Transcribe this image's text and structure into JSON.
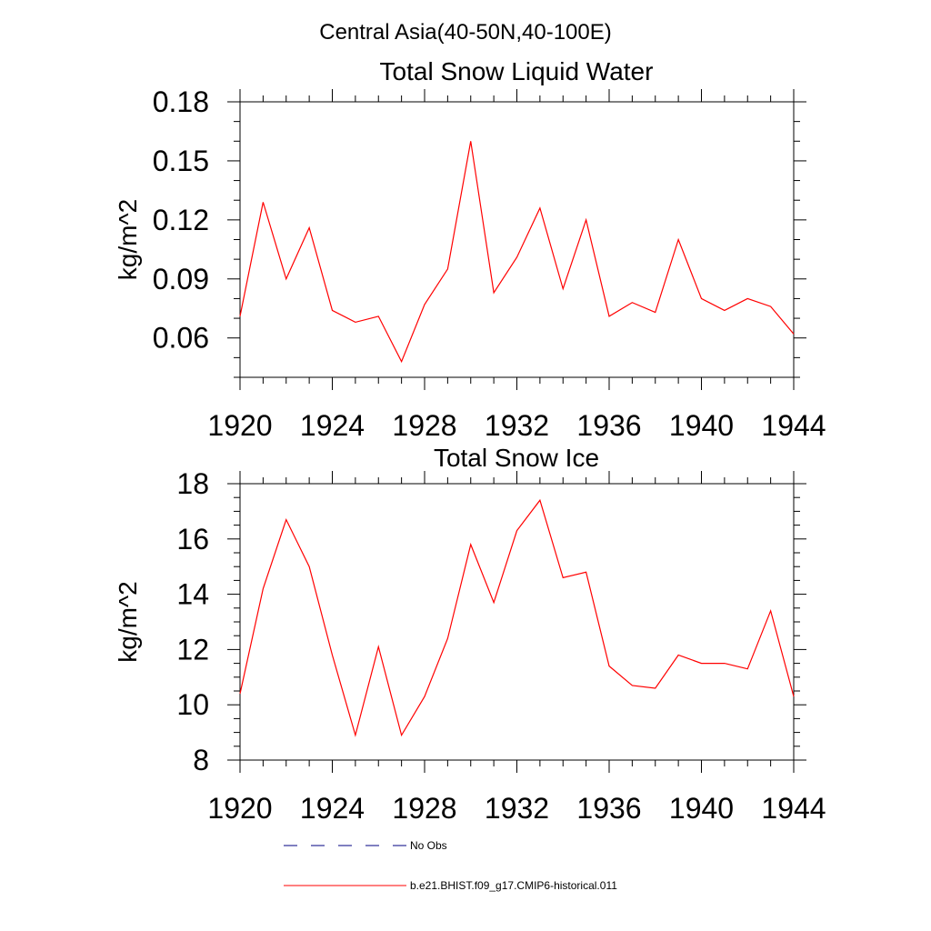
{
  "figure_title": "Central Asia(40-50N,40-100E)",
  "colors": {
    "model": "#ff0000",
    "obs": "#000080",
    "axis": "#000000"
  },
  "legend": {
    "entries": [
      {
        "label": "No Obs",
        "style": "dashed",
        "color": "#000080"
      },
      {
        "label": "b.e21.BHIST.f09_g17.CMIP6-historical.011",
        "style": "solid",
        "color": "#ff0000"
      }
    ]
  },
  "chart_data": [
    {
      "type": "line",
      "title": "Total Snow Liquid Water",
      "xlabel": "",
      "ylabel": "kg/m^2",
      "xlim": [
        1920,
        1944
      ],
      "ylim": [
        0.04,
        0.18
      ],
      "xticks": [
        1920,
        1924,
        1928,
        1932,
        1936,
        1940,
        1944
      ],
      "yticks": [
        0.06,
        0.09,
        0.12,
        0.15,
        0.18
      ],
      "ytick_labels": [
        "0.06",
        "0.09",
        "0.12",
        "0.15",
        "0.18"
      ],
      "grid": false,
      "x": [
        1920,
        1921,
        1922,
        1923,
        1924,
        1925,
        1926,
        1927,
        1928,
        1929,
        1930,
        1931,
        1932,
        1933,
        1934,
        1935,
        1936,
        1937,
        1938,
        1939,
        1940,
        1941,
        1942,
        1943,
        1944
      ],
      "series": [
        {
          "name": "b.e21.BHIST.f09_g17.CMIP6-historical.011",
          "color": "#ff0000",
          "values": [
            0.071,
            0.129,
            0.09,
            0.116,
            0.074,
            0.068,
            0.071,
            0.048,
            0.077,
            0.095,
            0.16,
            0.083,
            0.101,
            0.126,
            0.085,
            0.12,
            0.071,
            0.078,
            0.073,
            0.11,
            0.08,
            0.074,
            0.08,
            0.076,
            0.062
          ]
        }
      ]
    },
    {
      "type": "line",
      "title": "Total Snow Ice",
      "xlabel": "",
      "ylabel": "kg/m^2",
      "xlim": [
        1920,
        1944
      ],
      "ylim": [
        8,
        18
      ],
      "xticks": [
        1920,
        1924,
        1928,
        1932,
        1936,
        1940,
        1944
      ],
      "yticks": [
        8,
        10,
        12,
        14,
        16,
        18
      ],
      "ytick_labels": [
        "8",
        "10",
        "12",
        "14",
        "16",
        "18"
      ],
      "grid": false,
      "x": [
        1920,
        1921,
        1922,
        1923,
        1924,
        1925,
        1926,
        1927,
        1928,
        1929,
        1930,
        1931,
        1932,
        1933,
        1934,
        1935,
        1936,
        1937,
        1938,
        1939,
        1940,
        1941,
        1942,
        1943,
        1944
      ],
      "series": [
        {
          "name": "b.e21.BHIST.f09_g17.CMIP6-historical.011",
          "color": "#ff0000",
          "values": [
            10.4,
            14.2,
            16.7,
            15.0,
            11.8,
            8.9,
            12.1,
            8.9,
            10.3,
            12.4,
            15.8,
            13.7,
            16.3,
            17.4,
            14.6,
            14.8,
            11.4,
            10.7,
            10.6,
            11.8,
            11.5,
            11.5,
            11.3,
            13.4,
            10.3
          ]
        }
      ]
    }
  ]
}
